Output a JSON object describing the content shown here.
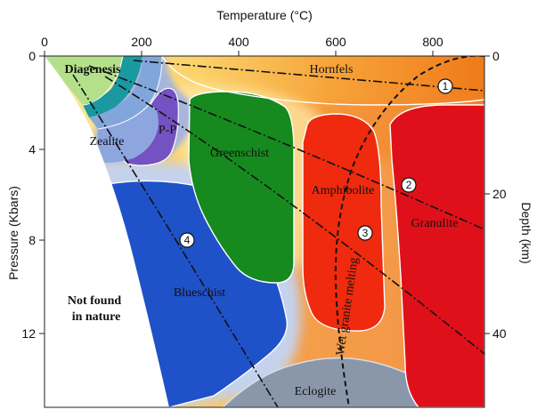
{
  "axes": {
    "top_title": "Temperature (°C)",
    "left_title": "Pressure (Kbars)",
    "right_title": "Depth (km)",
    "top_ticks": [
      "0",
      "200",
      "400",
      "600",
      "800"
    ],
    "left_ticks": [
      "0",
      "4",
      "8",
      "12"
    ],
    "right_ticks": [
      "0",
      "20",
      "40"
    ]
  },
  "facies": {
    "diagenesis": "Diagenesis",
    "hornfels": "Hornfels",
    "zeolite": "Zealite",
    "pp": "P-P",
    "greenschist": "Greenschist",
    "amphibolite": "Amphibolite",
    "granulite": "Granulite",
    "blueschist": "Blueschist",
    "eclogite": "Eclogite"
  },
  "regions": {
    "not_found_line1": "Not found",
    "not_found_line2": "in nature",
    "wet_granite": "Wet granite melting"
  },
  "paths": {
    "p1": "1",
    "p2": "2",
    "p3": "3",
    "p4": "4"
  },
  "colors": {
    "hornfels_field": "#f5a623",
    "diagenesis": "#b4e08a",
    "teal_band": "#1a9aa0",
    "zeolite": "#8fa8e0",
    "pp": "#7b5cc4",
    "greenschist": "#1c8c1c",
    "amphibolite": "#f02a10",
    "granulite": "#e01018",
    "blueschist": "#1f52c8",
    "eclogite": "#8797b0"
  }
}
